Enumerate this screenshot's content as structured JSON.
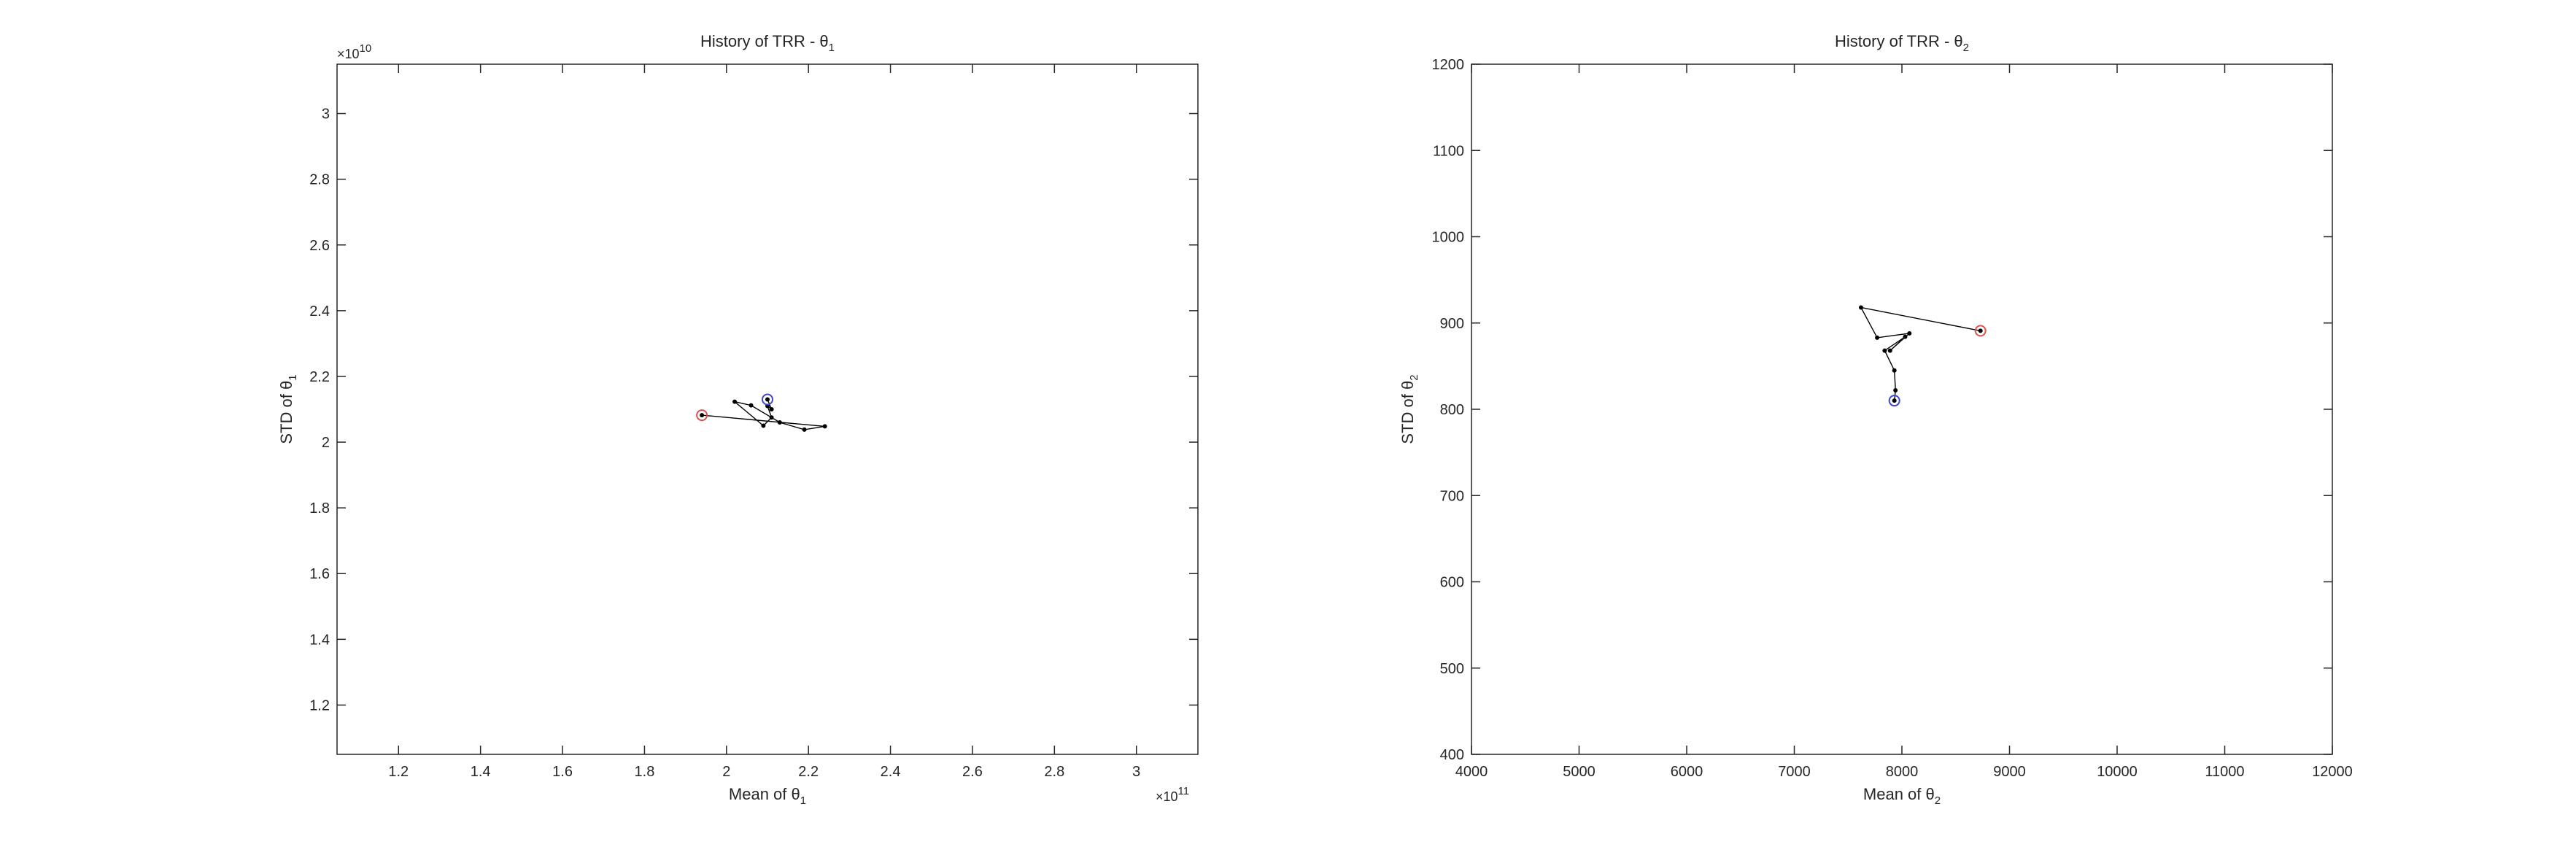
{
  "chart_data": [
    {
      "type": "line",
      "title": "History of TRR - θ",
      "title_subscript": "1",
      "xlabel": "Mean of θ",
      "xlabel_subscript": "1",
      "ylabel": "STD of θ",
      "ylabel_subscript": "1",
      "x_exponent_label": "×10",
      "x_exponent_power": "11",
      "y_exponent_label": "×10",
      "y_exponent_power": "10",
      "x_scale": 100000000000.0,
      "y_scale": 10000000000.0,
      "xlim": [
        105000000000.0,
        315000000000.0
      ],
      "ylim": [
        10500000000.0,
        31500000000.0
      ],
      "xticks": [
        120000000000.0,
        140000000000.0,
        160000000000.0,
        180000000000.0,
        200000000000.0,
        220000000000.0,
        240000000000.0,
        260000000000.0,
        280000000000.0,
        300000000000.0
      ],
      "xtick_labels": [
        "1.2",
        "1.4",
        "1.6",
        "1.8",
        "2",
        "2.2",
        "2.4",
        "2.6",
        "2.8",
        "3"
      ],
      "yticks": [
        12000000000.0,
        14000000000.0,
        16000000000.0,
        18000000000.0,
        20000000000.0,
        22000000000.0,
        24000000000.0,
        26000000000.0,
        28000000000.0,
        30000000000.0
      ],
      "ytick_labels": [
        "1.2",
        "1.4",
        "1.6",
        "1.8",
        "2",
        "2.2",
        "2.4",
        "2.6",
        "2.8",
        "3"
      ],
      "grid": false,
      "series": [
        {
          "x": [
            194000000000.0,
            224000000000.0,
            219000000000.0,
            213000000000.0,
            206000000000.0,
            202000000000.0,
            209000000000.0,
            211000000000.0,
            210000000000.0,
            211000000000.0,
            210000000000.0
          ],
          "y": [
            20820000000.0,
            20480000000.0,
            20380000000.0,
            20600000000.0,
            21120000000.0,
            21230000000.0,
            20500000000.0,
            20750000000.0,
            21100000000.0,
            21000000000.0,
            21300000000.0
          ],
          "color": "#000000"
        }
      ],
      "start_marker": {
        "x": 194000000000.0,
        "y": 20820000000.0,
        "color": "#d9534f"
      },
      "end_marker": {
        "x": 210000000000.0,
        "y": 21300000000.0,
        "color": "#3f48cc"
      }
    },
    {
      "type": "line",
      "title": "History of TRR - θ",
      "title_subscript": "2",
      "xlabel": "Mean of θ",
      "xlabel_subscript": "2",
      "ylabel": "STD of θ",
      "ylabel_subscript": "2",
      "x_scale": 1,
      "y_scale": 1,
      "xlim": [
        4000,
        12000
      ],
      "ylim": [
        400,
        1200
      ],
      "xticks": [
        4000,
        5000,
        6000,
        7000,
        8000,
        9000,
        10000,
        11000,
        12000
      ],
      "xtick_labels": [
        "4000",
        "5000",
        "6000",
        "7000",
        "8000",
        "9000",
        "10000",
        "11000",
        "12000"
      ],
      "yticks": [
        400,
        500,
        600,
        700,
        800,
        900,
        1000,
        1100,
        1200
      ],
      "ytick_labels": [
        "400",
        "500",
        "600",
        "700",
        "800",
        "900",
        "1000",
        "1100",
        "1200"
      ],
      "grid": false,
      "series": [
        {
          "x": [
            8730,
            7620,
            7770,
            8070,
            7890,
            8030,
            7840,
            7930,
            7940,
            7930
          ],
          "y": [
            891,
            918,
            883,
            888,
            868,
            884,
            868,
            845,
            822,
            810
          ],
          "color": "#000000"
        }
      ],
      "start_marker": {
        "x": 8730,
        "y": 891,
        "color": "#d9534f"
      },
      "end_marker": {
        "x": 7930,
        "y": 810,
        "color": "#3f48cc"
      }
    }
  ]
}
